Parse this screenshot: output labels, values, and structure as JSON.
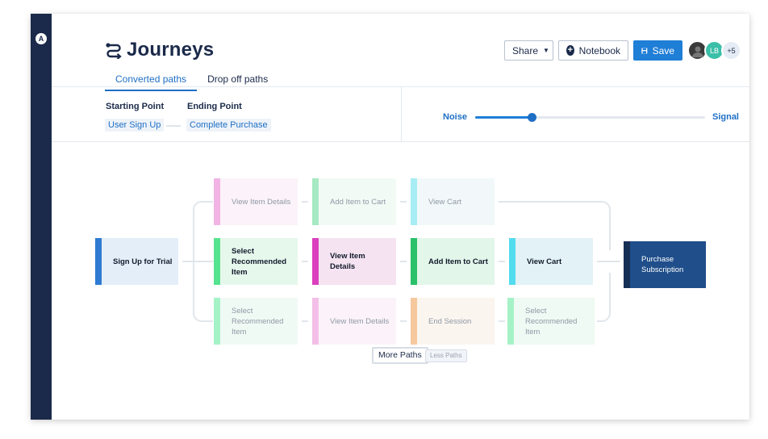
{
  "app": {
    "title": "Journeys",
    "logo": "A"
  },
  "toolbar": {
    "share_label": "Share",
    "notebook_label": "Notebook",
    "save_label": "Save",
    "avatar_initials": "LB",
    "more_users": "+5"
  },
  "tabs": [
    {
      "label": "Converted paths",
      "active": true
    },
    {
      "label": "Drop off paths",
      "active": false
    }
  ],
  "filters": {
    "starting_label": "Starting Point",
    "starting_value": "User Sign Up",
    "ending_label": "Ending Point",
    "ending_value": "Complete Purchase"
  },
  "slider": {
    "left_label": "Noise",
    "right_label": "Signal",
    "value_percent": 25
  },
  "journey": {
    "start": {
      "label": "Sign Up for Trial",
      "color": "#2e7bd1"
    },
    "end": {
      "label": "Purchase Subscription",
      "color": "#1f4e8a"
    },
    "rows": [
      [
        {
          "label": "View Item Details",
          "color": "#f2b4e4",
          "emphasis": "faded"
        },
        {
          "label": "Add Item to Cart",
          "color": "#a6e9c2",
          "emphasis": "faded"
        },
        {
          "label": "View Cart",
          "color": "#a8ecf4",
          "emphasis": "faded"
        }
      ],
      [
        {
          "label": "Select Recommended Item",
          "color": "#56e38f",
          "emphasis": "strong"
        },
        {
          "label": "View Item Details",
          "color": "#db3fbe",
          "emphasis": "strong"
        },
        {
          "label": "Add Item to Cart",
          "color": "#29c16a",
          "emphasis": "strong"
        },
        {
          "label": "View Cart",
          "color": "#53dbee",
          "emphasis": "strong"
        }
      ],
      [
        {
          "label": "Select Recommended Item",
          "color": "#a6f2c7",
          "emphasis": "faded"
        },
        {
          "label": "View Item Details",
          "color": "#f3bfe8",
          "emphasis": "faded"
        },
        {
          "label": "End Session",
          "color": "#f6c89e",
          "emphasis": "faded"
        },
        {
          "label": "Select Recommended Item",
          "color": "#a6f2c7",
          "emphasis": "faded"
        }
      ]
    ]
  },
  "paths_controls": {
    "more_label": "More Paths",
    "less_label": "Less Paths"
  }
}
